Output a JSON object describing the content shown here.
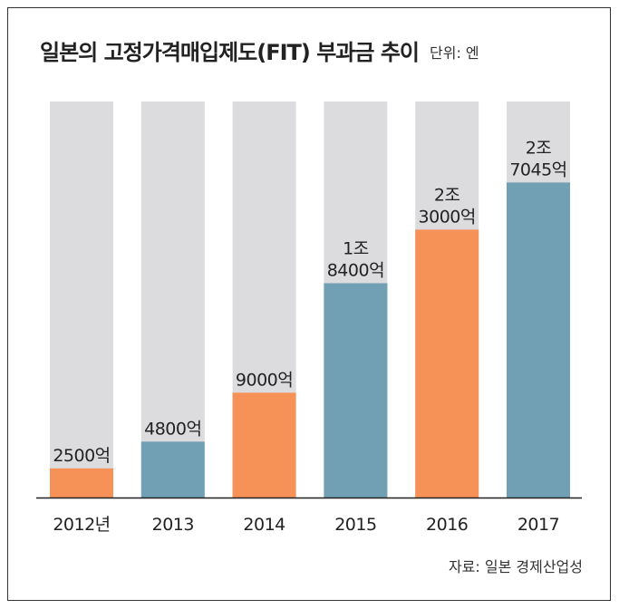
{
  "title": "일본의 고정가격매입제도(FIT) 부과금 추이",
  "unit_label": "단위: 엔",
  "source": "자료: 일본 경제산업성",
  "colors": {
    "background_bar": "#dcdcde",
    "orange": "#f69157",
    "blue": "#719fb3",
    "axis": "#222222"
  },
  "chart_data": {
    "type": "bar",
    "title": "일본의 고정가격매입제도(FIT) 부과금 추이",
    "xlabel": "",
    "ylabel": "",
    "unit": "엔",
    "ylim": [
      0,
      3.4
    ],
    "categories": [
      "2012년",
      "2013",
      "2014",
      "2015",
      "2016",
      "2017"
    ],
    "values_100m_yen": [
      2500,
      4800,
      9000,
      18400,
      23000,
      27045
    ],
    "values_trillion_yen": [
      0.25,
      0.48,
      0.9,
      1.84,
      2.3,
      2.7045
    ],
    "data_labels": [
      [
        "2500억"
      ],
      [
        "4800억"
      ],
      [
        "9000억"
      ],
      [
        "1조",
        "8400억"
      ],
      [
        "2조",
        "3000억"
      ],
      [
        "2조",
        "7045억"
      ]
    ],
    "bar_colors": [
      "orange",
      "blue",
      "orange",
      "blue",
      "orange",
      "blue"
    ],
    "grid": false,
    "legend": "none"
  }
}
